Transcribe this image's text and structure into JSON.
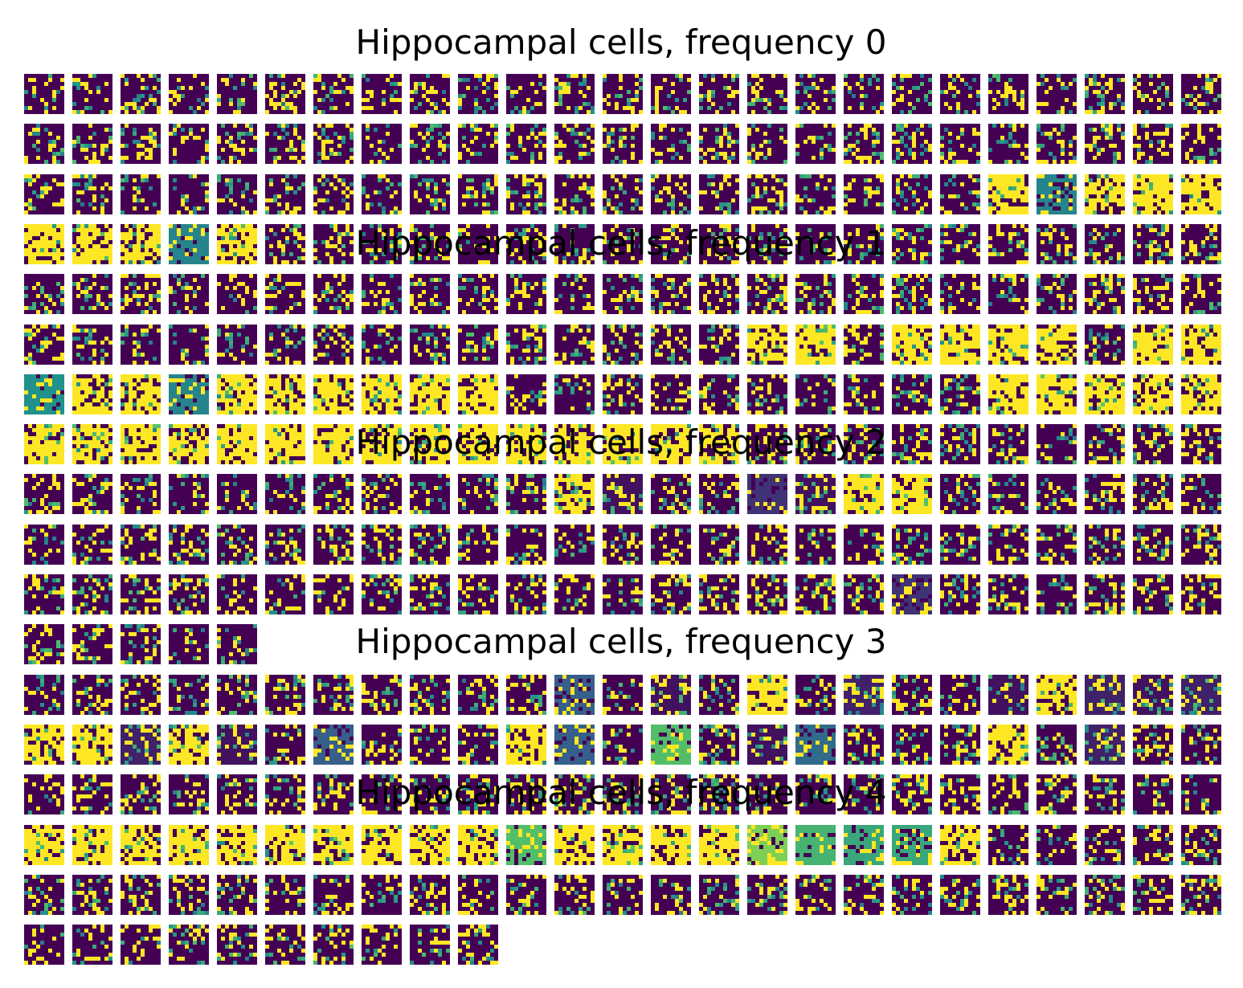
{
  "figure": {
    "titles": [
      "Hippocampal cells, frequency 0",
      "Hippocampal cells, frequency 1",
      "Hippocampal cells, frequency 2",
      "Hippocampal cells, frequency 3",
      "Hippocampal cells, frequency 4"
    ]
  },
  "chart_data": {
    "type": "heatmap",
    "description_grid": {
      "columns": 25,
      "rows": 18,
      "tile_resolution": [
        10,
        10
      ]
    },
    "colormap": [
      "#440154",
      "#3b528b",
      "#21918c",
      "#5ec962",
      "#fde725"
    ],
    "panels": [
      {
        "title": "Hippocampal cells, frequency 0",
        "tile_count": 75
      },
      {
        "title": "Hippocampal cells, frequency 1",
        "tile_count": 105
      },
      {
        "title": "Hippocampal cells, frequency 2",
        "tile_count": 105
      },
      {
        "title": "Hippocampal cells, frequency 3",
        "tile_count": 75
      },
      {
        "title": "Hippocampal cells, frequency 4",
        "tile_count": 85
      }
    ],
    "tile_background_levels": [
      [
        0,
        0,
        0,
        0,
        0,
        0,
        0,
        0,
        0,
        0,
        0,
        0,
        0,
        0,
        0,
        0,
        0,
        0,
        0,
        0,
        0,
        0,
        0,
        0,
        0
      ],
      [
        0,
        0,
        0,
        0,
        0,
        0,
        0,
        0,
        0,
        0,
        0,
        0,
        0,
        0,
        0,
        0,
        0,
        0,
        0,
        0,
        0,
        0,
        0,
        0,
        0
      ],
      [
        0,
        0,
        0,
        0,
        0,
        0,
        0,
        0,
        0,
        0,
        0,
        0,
        0,
        0,
        0,
        0,
        0,
        0,
        0,
        0,
        1,
        0.45,
        1,
        1,
        1
      ],
      [
        1,
        1,
        1,
        0.45,
        1,
        0,
        0,
        0,
        0,
        0,
        0,
        0,
        0,
        0,
        0,
        0,
        0,
        0,
        0,
        0,
        0,
        0,
        0,
        0,
        0
      ],
      [
        0,
        0,
        0,
        0,
        0,
        0,
        0,
        0,
        0,
        0,
        0,
        0,
        0,
        0,
        0,
        0,
        0,
        0,
        0,
        0,
        0,
        0,
        0,
        0,
        0
      ],
      [
        0,
        0,
        0,
        0,
        0,
        0,
        0,
        0,
        0,
        0,
        0,
        0,
        0,
        0,
        0,
        1,
        1,
        0,
        1,
        1,
        1,
        1,
        0,
        1,
        1
      ],
      [
        0.5,
        1,
        1,
        0.45,
        1,
        1,
        1,
        1,
        1,
        1,
        0,
        0,
        0,
        0,
        0,
        0,
        0,
        0,
        0,
        0,
        1,
        1,
        1,
        1,
        1
      ],
      [
        1,
        1,
        1,
        1,
        1,
        1,
        1,
        1,
        1,
        1,
        1,
        1,
        1,
        1,
        1,
        0,
        0,
        0,
        0,
        0,
        0,
        0,
        0,
        0,
        0
      ],
      [
        0,
        0,
        0,
        0,
        0,
        0,
        0,
        0,
        0,
        0,
        0,
        1,
        0.05,
        0,
        0,
        0.15,
        0.05,
        1,
        1,
        0,
        0,
        0,
        0,
        0,
        0
      ],
      [
        0,
        0,
        0,
        0,
        0,
        0,
        0,
        0,
        0,
        0,
        0,
        0,
        0,
        0,
        0,
        0,
        0,
        0,
        0,
        0,
        0,
        0,
        0,
        0,
        0
      ],
      [
        0,
        0,
        0,
        0,
        0,
        0,
        0,
        0,
        0,
        0,
        0,
        0,
        0,
        0,
        0,
        0,
        0,
        0,
        0.15,
        0,
        0,
        0,
        0,
        0,
        0
      ],
      [
        0,
        0,
        0,
        0,
        0
      ],
      [
        0,
        0,
        0,
        0,
        0,
        0,
        0,
        0,
        0,
        0,
        0,
        0.3,
        0,
        0.05,
        0,
        1,
        0,
        0.1,
        0,
        0,
        0.05,
        1,
        0.1,
        0.05,
        0.1
      ],
      [
        1,
        1,
        0.1,
        1,
        0.05,
        0,
        0.3,
        0,
        0,
        0,
        1,
        0.3,
        0,
        0.7,
        0,
        0.05,
        0.35,
        0,
        0,
        0,
        1,
        0,
        0.1,
        0,
        0
      ],
      [
        0,
        0,
        0,
        0,
        0,
        0,
        0,
        0,
        0,
        0,
        0,
        0,
        0,
        0,
        0,
        0,
        0,
        0,
        0,
        0,
        0,
        0,
        0,
        0,
        0
      ],
      [
        1,
        1,
        1,
        1,
        1,
        1,
        1,
        1,
        1,
        1,
        0.7,
        1,
        1,
        1,
        1,
        0.8,
        0.65,
        0.6,
        0.6,
        1,
        0,
        0,
        0,
        0,
        0
      ],
      [
        0,
        0,
        0,
        0,
        0,
        0,
        0,
        0,
        0,
        0,
        0,
        0,
        0,
        0,
        0,
        0,
        0,
        0,
        0,
        0,
        0,
        0,
        0,
        0,
        0
      ],
      [
        0,
        0,
        0,
        0,
        0,
        0,
        0,
        0,
        0,
        0
      ]
    ]
  }
}
